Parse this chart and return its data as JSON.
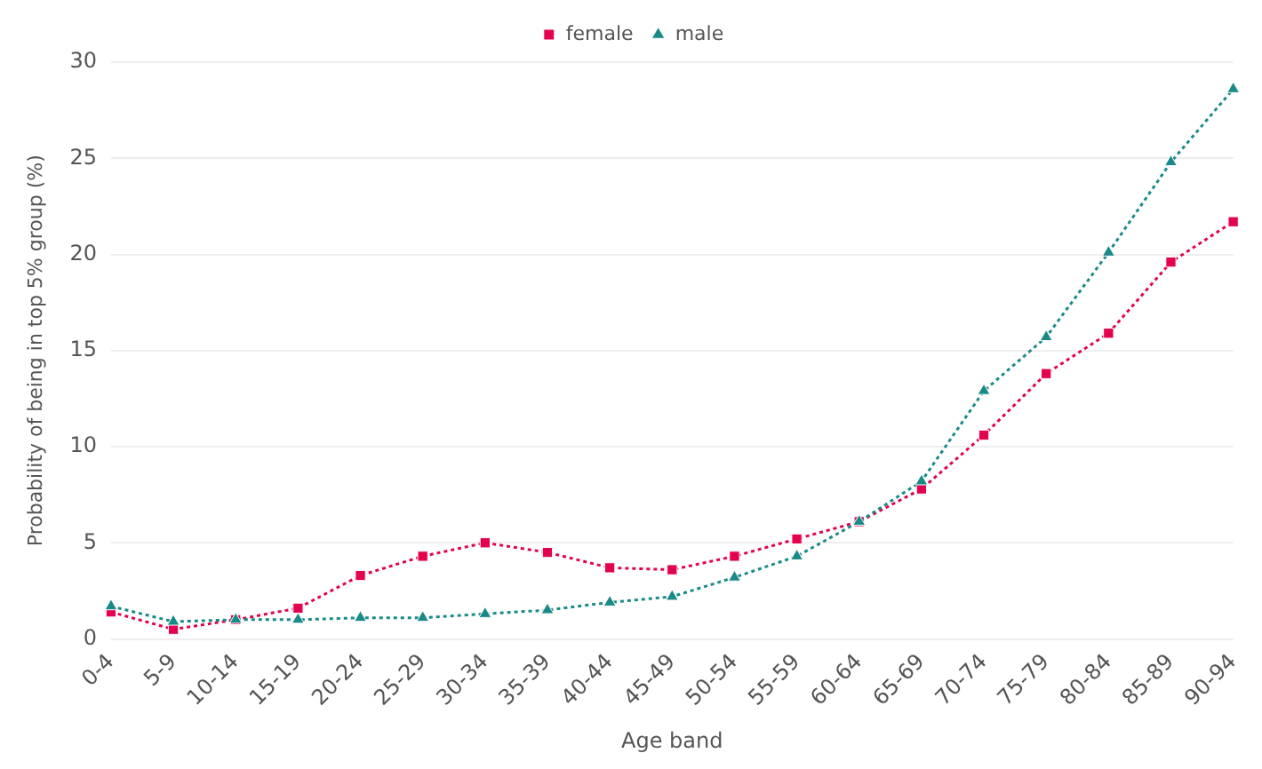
{
  "chart_data": {
    "type": "line",
    "xlabel": "Age band",
    "ylabel": "Probability of being in top 5% group (%)",
    "categories": [
      "0-4",
      "5-9",
      "10-14",
      "15-19",
      "20-24",
      "25-29",
      "30-34",
      "35-39",
      "40-44",
      "45-49",
      "50-54",
      "55-59",
      "60-64",
      "65-69",
      "70-74",
      "75-79",
      "80-84",
      "85-89",
      "90-94"
    ],
    "series": [
      {
        "name": "female",
        "color": "#e3024f",
        "marker": "square",
        "values": [
          1.4,
          0.5,
          1.0,
          1.6,
          3.3,
          4.3,
          5.0,
          4.5,
          3.7,
          3.6,
          4.3,
          5.2,
          6.1,
          7.8,
          10.6,
          13.8,
          15.9,
          19.6,
          21.7
        ]
      },
      {
        "name": "male",
        "color": "#1a8a88",
        "marker": "triangle",
        "values": [
          1.7,
          0.9,
          1.0,
          1.0,
          1.1,
          1.1,
          1.3,
          1.5,
          1.9,
          2.2,
          3.2,
          4.3,
          6.1,
          8.2,
          12.9,
          15.7,
          20.1,
          24.8,
          28.6
        ]
      }
    ],
    "ylim": [
      0,
      30
    ],
    "yticks": [
      0,
      5,
      10,
      15,
      20,
      25,
      30
    ],
    "grid": "y",
    "legend": "top",
    "line_style": "dotted"
  }
}
